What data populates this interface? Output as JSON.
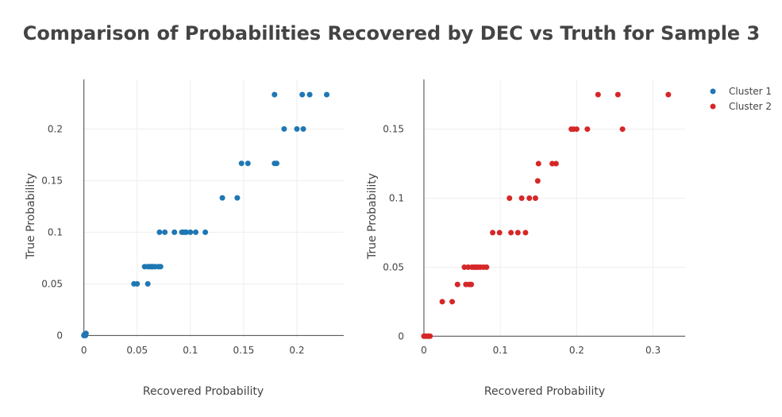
{
  "chart_data": {
    "title": "Comparison of Probabilities Recovered by DEC vs Truth for Sample 3",
    "legend": {
      "placement": "top-right",
      "entries": [
        {
          "name": "Cluster 1",
          "color": "#1f77b4"
        },
        {
          "name": "Cluster 2",
          "color": "#d62728"
        }
      ]
    },
    "charts": [
      {
        "type": "scatter",
        "series_name": "Cluster 1",
        "color": "#1f77b4",
        "xlabel": "Recovered Probability",
        "ylabel": "True Probability",
        "xlim": [
          -0.002,
          0.244
        ],
        "ylim": [
          -0.002,
          0.248
        ],
        "xticks": [
          0,
          0.05,
          0.1,
          0.15,
          0.2
        ],
        "yticks": [
          0,
          0.05,
          0.1,
          0.15,
          0.2
        ],
        "xtick_labels": [
          "0",
          "0.05",
          "0.1",
          "0.15",
          "0.2"
        ],
        "ytick_labels": [
          "0",
          "0.05",
          "0.1",
          "0.15",
          "0.2"
        ],
        "grid": true,
        "points": [
          [
            0,
            0
          ],
          [
            0.001,
            0.001
          ],
          [
            0.002,
            0.002
          ],
          [
            0.0005,
            0.001
          ],
          [
            0.0015,
            0
          ],
          [
            0.047,
            0.05
          ],
          [
            0.05,
            0.05
          ],
          [
            0.06,
            0.05
          ],
          [
            0.057,
            0.0667
          ],
          [
            0.06,
            0.0667
          ],
          [
            0.062,
            0.0667
          ],
          [
            0.063,
            0.0667
          ],
          [
            0.064,
            0.0667
          ],
          [
            0.065,
            0.0667
          ],
          [
            0.067,
            0.0667
          ],
          [
            0.07,
            0.0667
          ],
          [
            0.072,
            0.0667
          ],
          [
            0.071,
            0.1
          ],
          [
            0.076,
            0.1
          ],
          [
            0.085,
            0.1
          ],
          [
            0.092,
            0.1
          ],
          [
            0.094,
            0.1
          ],
          [
            0.096,
            0.1
          ],
          [
            0.1,
            0.1
          ],
          [
            0.105,
            0.1
          ],
          [
            0.114,
            0.1
          ],
          [
            0.13,
            0.1333
          ],
          [
            0.144,
            0.1333
          ],
          [
            0.148,
            0.1667
          ],
          [
            0.154,
            0.1667
          ],
          [
            0.179,
            0.1667
          ],
          [
            0.181,
            0.1667
          ],
          [
            0.188,
            0.2
          ],
          [
            0.2,
            0.2
          ],
          [
            0.206,
            0.2
          ],
          [
            0.179,
            0.2333
          ],
          [
            0.205,
            0.2333
          ],
          [
            0.212,
            0.2333
          ],
          [
            0.228,
            0.2333
          ]
        ]
      },
      {
        "type": "scatter",
        "series_name": "Cluster 2",
        "color": "#d62728",
        "xlabel": "Recovered Probability",
        "ylabel": "True Probability",
        "xlim": [
          -0.001,
          0.342
        ],
        "ylim": [
          -0.001,
          0.186
        ],
        "xticks": [
          0,
          0.1,
          0.2,
          0.3
        ],
        "yticks": [
          0,
          0.05,
          0.1,
          0.15
        ],
        "xtick_labels": [
          "0",
          "0.1",
          "0.2",
          "0.3"
        ],
        "ytick_labels": [
          "0",
          "0.05",
          "0.1",
          "0.15"
        ],
        "grid": true,
        "points": [
          [
            0,
            0
          ],
          [
            0.002,
            0
          ],
          [
            0.004,
            0
          ],
          [
            0.006,
            0
          ],
          [
            0.008,
            0
          ],
          [
            0.024,
            0.025
          ],
          [
            0.037,
            0.025
          ],
          [
            0.044,
            0.0375
          ],
          [
            0.055,
            0.0375
          ],
          [
            0.059,
            0.0375
          ],
          [
            0.062,
            0.0375
          ],
          [
            0.053,
            0.05
          ],
          [
            0.058,
            0.05
          ],
          [
            0.063,
            0.05
          ],
          [
            0.066,
            0.05
          ],
          [
            0.068,
            0.05
          ],
          [
            0.071,
            0.05
          ],
          [
            0.074,
            0.05
          ],
          [
            0.078,
            0.05
          ],
          [
            0.082,
            0.05
          ],
          [
            0.09,
            0.075
          ],
          [
            0.099,
            0.075
          ],
          [
            0.114,
            0.075
          ],
          [
            0.123,
            0.075
          ],
          [
            0.133,
            0.075
          ],
          [
            0.112,
            0.1
          ],
          [
            0.128,
            0.1
          ],
          [
            0.138,
            0.1
          ],
          [
            0.146,
            0.1
          ],
          [
            0.149,
            0.1125
          ],
          [
            0.15,
            0.125
          ],
          [
            0.168,
            0.125
          ],
          [
            0.173,
            0.125
          ],
          [
            0.193,
            0.15
          ],
          [
            0.196,
            0.15
          ],
          [
            0.2,
            0.15
          ],
          [
            0.214,
            0.15
          ],
          [
            0.26,
            0.15
          ],
          [
            0.228,
            0.175
          ],
          [
            0.254,
            0.175
          ],
          [
            0.32,
            0.175
          ]
        ]
      }
    ]
  }
}
